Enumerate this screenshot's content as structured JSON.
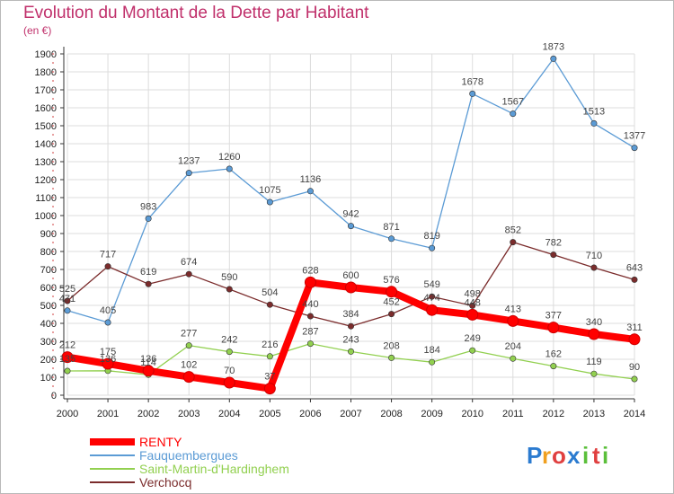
{
  "chart_data": {
    "type": "line",
    "title": "Evolution du Montant de la Dette par Habitant",
    "subtitle": "(en €)",
    "xlabel": "",
    "ylabel": "",
    "ylim": [
      0,
      1900
    ],
    "yticks": [
      0,
      100,
      200,
      300,
      400,
      500,
      600,
      700,
      800,
      900,
      1000,
      1100,
      1200,
      1300,
      1400,
      1500,
      1600,
      1700,
      1800,
      1900
    ],
    "categories": [
      "2000",
      "2001",
      "2002",
      "2003",
      "2004",
      "2005",
      "2006",
      "2007",
      "2008",
      "2009",
      "2010",
      "2011",
      "2012",
      "2013",
      "2014"
    ],
    "grid": true,
    "legend_position": "bottom-left",
    "series": [
      {
        "name": "RENTY",
        "color": "#ff0000",
        "values": [
          212,
          175,
          136,
          102,
          70,
          37,
          628,
          600,
          576,
          474,
          448,
          413,
          377,
          340,
          311
        ]
      },
      {
        "name": "Fauquembergues",
        "color": "#5b9bd5",
        "values": [
          471,
          405,
          983,
          1237,
          1260,
          1075,
          1136,
          942,
          871,
          819,
          1678,
          1567,
          1873,
          1513,
          1377
        ]
      },
      {
        "name": "Saint-Martin-d'Hardinghem",
        "color": "#92d050",
        "values": [
          135,
          136,
          114,
          277,
          242,
          216,
          287,
          243,
          208,
          184,
          249,
          204,
          162,
          119,
          90
        ]
      },
      {
        "name": "Verchocq",
        "color": "#7b2c2c",
        "values": [
          525,
          717,
          619,
          674,
          590,
          504,
          440,
          384,
          452,
          549,
          498,
          852,
          782,
          710,
          643
        ]
      }
    ]
  },
  "logo": {
    "letters": [
      "P",
      "r",
      "o",
      "x",
      "i",
      "t",
      "i"
    ],
    "colors": [
      "#2b7bd0",
      "#f0a020",
      "#e04040",
      "#2b7bd0",
      "#5bbf3a",
      "#e04040",
      "#5bbf3a"
    ]
  }
}
